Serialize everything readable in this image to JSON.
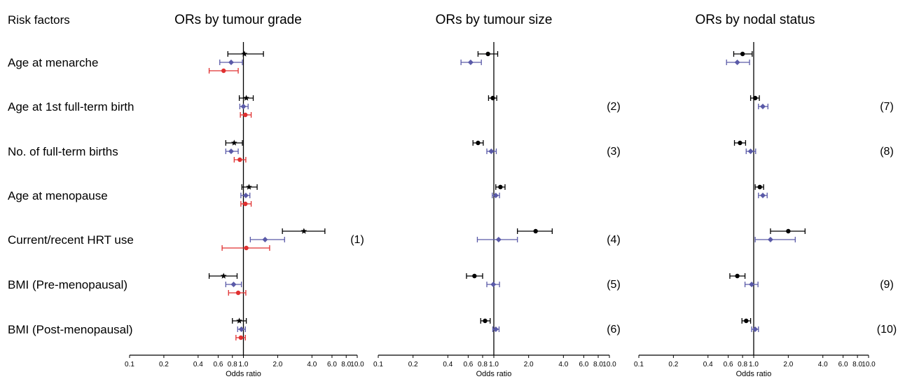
{
  "row_header": "Risk factors",
  "colors": {
    "series_black": "#000000",
    "series_blue": "#5a5aa8",
    "series_red": "#e03030"
  },
  "rows": [
    "Age at menarche",
    "Age at 1st full-term birth",
    "No. of full-term births",
    "Age at menopause",
    "Current/recent HRT use",
    "BMI (Pre-menopausal)",
    "BMI (Post-menopausal)"
  ],
  "chart_data": [
    {
      "type": "forest",
      "title": "ORs by tumour grade",
      "xlabel": "Odds ratio",
      "xscale": "log",
      "xlim": [
        0.1,
        10.0
      ],
      "ref_line": 1.0,
      "tick_labels": [
        "0.1",
        "0.2",
        "0.4",
        "0.6",
        "0.8",
        "1.0",
        "2.0",
        "4.0",
        "6.0",
        "8.0",
        "10.0"
      ],
      "tick_values": [
        0.1,
        0.2,
        0.4,
        0.6,
        0.8,
        1.0,
        2.0,
        4.0,
        6.0,
        8.0,
        10.0
      ],
      "series": [
        {
          "marker": "star",
          "color": "#000000",
          "points": [
            [
              1.02,
              0.73,
              1.5
            ],
            [
              1.06,
              0.92,
              1.22
            ],
            [
              0.83,
              0.7,
              0.98
            ],
            [
              1.12,
              0.97,
              1.32
            ],
            [
              3.4,
              2.2,
              5.2
            ],
            [
              0.67,
              0.5,
              0.88
            ],
            [
              0.92,
              0.8,
              1.06
            ]
          ]
        },
        {
          "marker": "diamond",
          "color": "#5a5aa8",
          "points": [
            [
              0.78,
              0.62,
              0.98
            ],
            [
              1.0,
              0.93,
              1.1
            ],
            [
              0.78,
              0.7,
              0.9
            ],
            [
              1.05,
              0.95,
              1.14
            ],
            [
              1.55,
              1.15,
              2.3
            ],
            [
              0.82,
              0.7,
              0.96
            ],
            [
              0.96,
              0.89,
              1.04
            ]
          ]
        },
        {
          "marker": "circle",
          "color": "#e03030",
          "points": [
            [
              0.67,
              0.5,
              0.9
            ],
            [
              1.04,
              0.94,
              1.17
            ],
            [
              0.93,
              0.83,
              1.05
            ],
            [
              1.04,
              0.95,
              1.17
            ],
            [
              1.06,
              0.65,
              1.7
            ],
            [
              0.9,
              0.74,
              1.05
            ],
            [
              0.95,
              0.86,
              1.04
            ]
          ]
        }
      ],
      "notes": [
        "",
        "",
        "",
        "",
        "(1)",
        "",
        ""
      ]
    },
    {
      "type": "forest",
      "title": "ORs by tumour size",
      "xlabel": "Odds ratio",
      "xscale": "log",
      "xlim": [
        0.1,
        10.0
      ],
      "ref_line": 1.0,
      "tick_labels": [
        "0.1",
        "0.2",
        "0.4",
        "0.6",
        "0.8",
        "1.0",
        "2.0",
        "4.0",
        "6.0",
        "8.0",
        "10.0"
      ],
      "tick_values": [
        0.1,
        0.2,
        0.4,
        0.6,
        0.8,
        1.0,
        2.0,
        4.0,
        6.0,
        8.0,
        10.0
      ],
      "series": [
        {
          "marker": "circle",
          "color": "#000000",
          "points": [
            [
              0.89,
              0.73,
              1.08
            ],
            [
              0.98,
              0.9,
              1.06
            ],
            [
              0.73,
              0.66,
              0.81
            ],
            [
              1.14,
              1.04,
              1.25
            ],
            [
              2.3,
              1.6,
              3.2
            ],
            [
              0.68,
              0.58,
              0.8
            ],
            [
              0.84,
              0.77,
              0.93
            ]
          ]
        },
        {
          "marker": "diamond",
          "color": "#5a5aa8",
          "points": [
            [
              0.63,
              0.52,
              0.78
            ],
            null,
            [
              0.95,
              0.87,
              1.05
            ],
            [
              1.04,
              0.97,
              1.12
            ],
            [
              1.1,
              0.72,
              1.6
            ],
            [
              0.99,
              0.87,
              1.12
            ],
            [
              1.04,
              0.98,
              1.11
            ]
          ]
        }
      ],
      "notes": [
        "",
        "(2)",
        "(3)",
        "",
        "(4)",
        "(5)",
        "(6)"
      ]
    },
    {
      "type": "forest",
      "title": "ORs by nodal status",
      "xlabel": "Odds ratio",
      "xscale": "log",
      "xlim": [
        0.1,
        10.0
      ],
      "ref_line": 1.0,
      "tick_labels": [
        "0.1",
        "0.2",
        "0.4",
        "0.6",
        "0.8",
        "1.0",
        "2.0",
        "4.0",
        "6.0",
        "8.0",
        "10.0"
      ],
      "tick_values": [
        0.1,
        0.2,
        0.4,
        0.6,
        0.8,
        1.0,
        2.0,
        4.0,
        6.0,
        8.0,
        10.0
      ],
      "series": [
        {
          "marker": "circle",
          "color": "#000000",
          "points": [
            [
              0.8,
              0.67,
              0.97
            ],
            [
              1.03,
              0.94,
              1.12
            ],
            [
              0.76,
              0.68,
              0.85
            ],
            [
              1.13,
              1.03,
              1.22
            ],
            [
              2.0,
              1.4,
              2.8
            ],
            [
              0.72,
              0.62,
              0.84
            ],
            [
              0.86,
              0.79,
              0.94
            ]
          ]
        },
        {
          "marker": "diamond",
          "color": "#5a5aa8",
          "points": [
            [
              0.72,
              0.58,
              0.92
            ],
            [
              1.2,
              1.1,
              1.33
            ],
            [
              0.94,
              0.86,
              1.04
            ],
            [
              1.2,
              1.1,
              1.31
            ],
            [
              1.4,
              1.03,
              2.3
            ],
            [
              0.96,
              0.84,
              1.09
            ],
            [
              1.03,
              0.96,
              1.1
            ]
          ]
        }
      ],
      "notes": [
        "",
        "(7)",
        "(8)",
        "",
        "",
        "(9)",
        "(10)"
      ]
    }
  ]
}
